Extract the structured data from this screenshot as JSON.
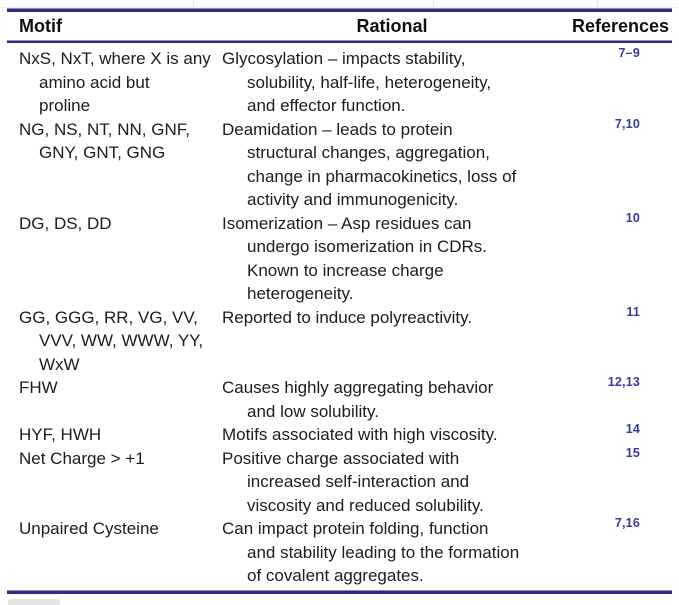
{
  "table": {
    "rule_color": "#2d2d7e",
    "reference_color": "#3a3a9b",
    "header": {
      "motif": "Motif",
      "rational": "Rational",
      "references": "References"
    },
    "rows": [
      {
        "motif": "NxS, NxT, where X is any\namino acid but\nproline",
        "rational": "Glycosylation – impacts stability,\nsolubility, half-life, heterogeneity,\nand effector function.",
        "references": "7–9"
      },
      {
        "motif": "NG, NS, NT, NN, GNF,\nGNY, GNT, GNG",
        "rational": "Deamidation – leads to protein\nstructural changes, aggregation,\nchange in pharmacokinetics, loss of\nactivity and immunogenicity.",
        "references": "7,10"
      },
      {
        "motif": "DG, DS, DD",
        "rational": "Isomerization – Asp residues can\nundergo isomerization in CDRs.\nKnown to increase charge\nheterogeneity.",
        "references": "10"
      },
      {
        "motif": "GG, GGG, RR, VG, VV,\nVVV, WW, WWW, YY,\nWxW",
        "rational": "Reported to induce polyreactivity.",
        "references": "11"
      },
      {
        "motif": "FHW",
        "rational": "Causes highly aggregating behavior\nand low solubility.",
        "references": "12,13"
      },
      {
        "motif": "HYF, HWH",
        "rational": "Motifs associated with high viscosity.",
        "references": "14"
      },
      {
        "motif": "Net Charge > +1",
        "rational": "Positive charge associated with\nincreased self-interaction and\nviscosity and reduced solubility.",
        "references": "15"
      },
      {
        "motif": "Unpaired Cysteine",
        "rational": "Can impact protein folding, function\nand stability leading to the formation\nof covalent aggregates.",
        "references": "7,16"
      }
    ]
  }
}
